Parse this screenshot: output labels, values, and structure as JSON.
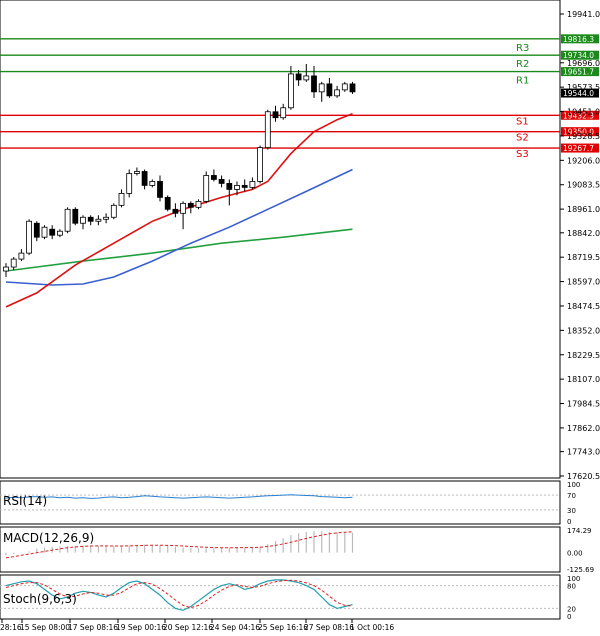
{
  "chart_data": {
    "type": "candlestick",
    "main": {
      "y_ticks": [
        "19941.0",
        "19696.0",
        "19573.5",
        "19451.0",
        "19328.5",
        "19206.0",
        "19083.5",
        "18961.0",
        "18842.0",
        "18719.5",
        "18597.0",
        "18474.5",
        "18352.0",
        "18229.5",
        "18107.0",
        "17984.5",
        "17862.0",
        "17743.0",
        "17620.5"
      ],
      "current_price": "19544.0",
      "ylim": [
        17620.5,
        19941.0
      ],
      "levels": [
        {
          "name": "R3",
          "price": 19816.3,
          "label": "19816.3",
          "color": "#1a8a1a"
        },
        {
          "name": "R2",
          "price": 19734.0,
          "label": "19734.0",
          "color": "#1a8a1a"
        },
        {
          "name": "R1",
          "price": 19651.7,
          "label": "19651.7",
          "color": "#1a8a1a"
        },
        {
          "name": "S1",
          "price": 19432.3,
          "label": "19432.3",
          "color": "#e00000"
        },
        {
          "name": "S2",
          "price": 19350.0,
          "label": "19350.0",
          "color": "#e00000"
        },
        {
          "name": "S3",
          "price": 19267.7,
          "label": "19267.7",
          "color": "#e00000"
        }
      ],
      "candles": [
        [
          18650,
          18690,
          18620,
          18670
        ],
        [
          18670,
          18720,
          18655,
          18710
        ],
        [
          18710,
          18760,
          18700,
          18740
        ],
        [
          18740,
          18910,
          18730,
          18900
        ],
        [
          18890,
          18900,
          18800,
          18820
        ],
        [
          18820,
          18880,
          18810,
          18870
        ],
        [
          18860,
          18880,
          18810,
          18830
        ],
        [
          18830,
          18860,
          18820,
          18850
        ],
        [
          18850,
          18970,
          18840,
          18960
        ],
        [
          18960,
          18970,
          18880,
          18890
        ],
        [
          18890,
          18930,
          18860,
          18920
        ],
        [
          18920,
          18930,
          18880,
          18900
        ],
        [
          18900,
          18930,
          18880,
          18910
        ],
        [
          18910,
          18940,
          18890,
          18920
        ],
        [
          18920,
          18990,
          18910,
          18980
        ],
        [
          18980,
          19060,
          18970,
          19040
        ],
        [
          19040,
          19160,
          19020,
          19140
        ],
        [
          19140,
          19170,
          19130,
          19150
        ],
        [
          19150,
          19160,
          19060,
          19080
        ],
        [
          19080,
          19110,
          19070,
          19100
        ],
        [
          19100,
          19130,
          19000,
          19020
        ],
        [
          19020,
          19030,
          18950,
          18960
        ],
        [
          18960,
          18990,
          18920,
          18940
        ],
        [
          18940,
          19000,
          18860,
          18990
        ],
        [
          18990,
          19000,
          18940,
          18970
        ],
        [
          18970,
          19010,
          18960,
          19000
        ],
        [
          19000,
          19150,
          18990,
          19130
        ],
        [
          19130,
          19160,
          19100,
          19110
        ],
        [
          19110,
          19130,
          19070,
          19090
        ],
        [
          19090,
          19110,
          18980,
          19060
        ],
        [
          19060,
          19100,
          19030,
          19080
        ],
        [
          19080,
          19110,
          19050,
          19070
        ],
        [
          19070,
          19120,
          19060,
          19100
        ],
        [
          19100,
          19280,
          19090,
          19270
        ],
        [
          19270,
          19460,
          19260,
          19450
        ],
        [
          19450,
          19480,
          19400,
          19420
        ],
        [
          19420,
          19490,
          19410,
          19470
        ],
        [
          19470,
          19680,
          19460,
          19640
        ],
        [
          19640,
          19660,
          19580,
          19610
        ],
        [
          19610,
          19690,
          19600,
          19630
        ],
        [
          19630,
          19680,
          19520,
          19550
        ],
        [
          19550,
          19600,
          19500,
          19590
        ],
        [
          19590,
          19620,
          19520,
          19530
        ],
        [
          19530,
          19580,
          19520,
          19560
        ],
        [
          19560,
          19600,
          19550,
          19590
        ],
        [
          19590,
          19600,
          19540,
          19550
        ]
      ],
      "ma_red": [
        [
          0,
          18470
        ],
        [
          4,
          18540
        ],
        [
          9,
          18680
        ],
        [
          14,
          18790
        ],
        [
          19,
          18900
        ],
        [
          23,
          18960
        ],
        [
          28,
          19020
        ],
        [
          30,
          19040
        ],
        [
          32,
          19060
        ],
        [
          34,
          19100
        ],
        [
          37,
          19240
        ],
        [
          40,
          19350
        ],
        [
          43,
          19410
        ],
        [
          45,
          19440
        ]
      ],
      "ma_blue": [
        [
          0,
          18595
        ],
        [
          6,
          18580
        ],
        [
          10,
          18585
        ],
        [
          14,
          18620
        ],
        [
          19,
          18700
        ],
        [
          24,
          18790
        ],
        [
          29,
          18870
        ],
        [
          34,
          18960
        ],
        [
          39,
          19050
        ],
        [
          45,
          19160
        ]
      ],
      "ma_green": [
        [
          0,
          18650
        ],
        [
          10,
          18700
        ],
        [
          19,
          18740
        ],
        [
          28,
          18790
        ],
        [
          36,
          18820
        ],
        [
          45,
          18860
        ]
      ]
    },
    "x_ticks": [
      "28:16",
      "15 Sep 08:00",
      "17 Sep 08:16",
      "19 Sep 00:16",
      "20 Sep 12:16",
      "24 Sep 04:16",
      "25 Sep 16:16",
      "27 Sep 08:16",
      "1 Oct 00:16"
    ],
    "rsi": {
      "label": "RSI(14)",
      "ticks": [
        "100",
        "70",
        "30",
        "0"
      ],
      "values": [
        62,
        64,
        63,
        65,
        66,
        64,
        65,
        63,
        64,
        62,
        63,
        61,
        62,
        64,
        65,
        63,
        64,
        66,
        68,
        67,
        65,
        64,
        63,
        62,
        63,
        64,
        65,
        64,
        63,
        62,
        63,
        64,
        65,
        67,
        68,
        69,
        70,
        71,
        70,
        69,
        68,
        66,
        65,
        64,
        63,
        64
      ]
    },
    "macd": {
      "label": "MACD(12,26,9)",
      "ticks": [
        "174.29",
        "0.00",
        "-125.69"
      ],
      "hist": [
        -20,
        -10,
        0,
        10,
        30,
        40,
        45,
        48,
        50,
        52,
        55,
        55,
        52,
        50,
        50,
        52,
        55,
        60,
        62,
        60,
        56,
        50,
        45,
        40,
        38,
        35,
        34,
        35,
        38,
        40,
        42,
        40,
        38,
        45,
        65,
        90,
        110,
        135,
        150,
        160,
        165,
        165,
        160,
        158,
        156,
        154
      ],
      "signal": [
        -40,
        -30,
        -20,
        -10,
        0,
        10,
        20,
        30,
        38,
        44,
        48,
        51,
        52,
        52,
        51,
        51,
        52,
        54,
        56,
        57,
        57,
        56,
        54,
        51,
        47,
        44,
        41,
        39,
        38,
        38,
        38,
        39,
        39,
        41,
        47,
        56,
        67,
        80,
        95,
        110,
        123,
        135,
        145,
        152,
        157,
        160
      ]
    },
    "stoch": {
      "label": "Stoch(9,6,3)",
      "ticks": [
        "100",
        "80",
        "20",
        "0"
      ],
      "k": [
        80,
        85,
        90,
        92,
        85,
        70,
        55,
        45,
        50,
        60,
        65,
        62,
        55,
        50,
        60,
        75,
        88,
        92,
        85,
        70,
        55,
        35,
        20,
        15,
        25,
        40,
        55,
        70,
        80,
        85,
        80,
        70,
        75,
        85,
        92,
        95,
        95,
        92,
        88,
        80,
        70,
        50,
        30,
        20,
        25,
        30
      ],
      "d": [
        75,
        80,
        85,
        88,
        88,
        82,
        70,
        58,
        50,
        52,
        58,
        62,
        60,
        55,
        55,
        62,
        74,
        85,
        88,
        84,
        72,
        58,
        42,
        28,
        22,
        28,
        40,
        55,
        68,
        78,
        82,
        78,
        75,
        78,
        85,
        90,
        93,
        94,
        92,
        87,
        80,
        68,
        52,
        36,
        28,
        26
      ]
    }
  }
}
